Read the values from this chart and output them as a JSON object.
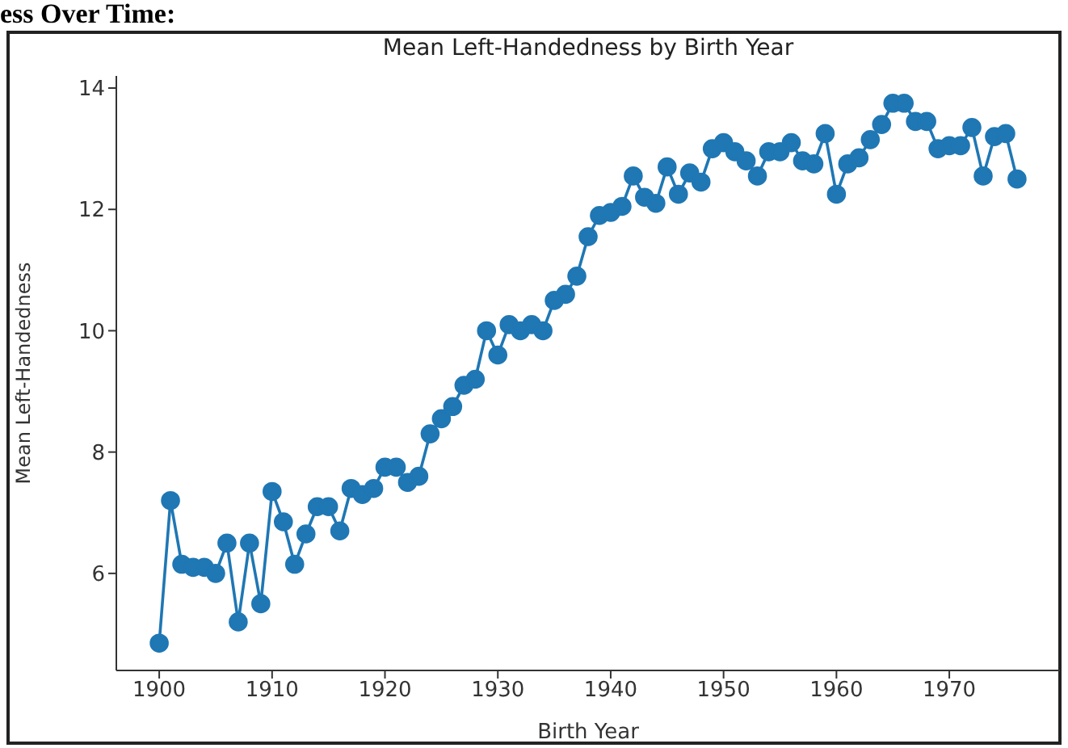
{
  "chart_data": {
    "type": "line",
    "title": "Mean Left-Handedness by Birth Year",
    "xlabel": "Birth Year",
    "ylabel": "Mean Left-Handedness",
    "annotations": [
      "ess Over Time:"
    ],
    "x": [
      1900,
      1901,
      1902,
      1903,
      1904,
      1905,
      1906,
      1907,
      1908,
      1909,
      1910,
      1911,
      1912,
      1913,
      1914,
      1915,
      1916,
      1917,
      1918,
      1919,
      1920,
      1921,
      1922,
      1923,
      1924,
      1925,
      1926,
      1927,
      1928,
      1929,
      1930,
      1931,
      1932,
      1933,
      1934,
      1935,
      1936,
      1937,
      1938,
      1939,
      1940,
      1941,
      1942,
      1943,
      1944,
      1945,
      1946,
      1947,
      1948,
      1949,
      1950,
      1951,
      1952,
      1953,
      1954,
      1955,
      1956,
      1957,
      1958,
      1959,
      1960,
      1961,
      1962,
      1963,
      1964,
      1965,
      1966,
      1967,
      1968,
      1969,
      1970,
      1971,
      1972,
      1973,
      1974,
      1975,
      1976
    ],
    "series": [
      {
        "color": "#1f77b4",
        "values": [
          4.85,
          7.2,
          6.15,
          6.1,
          6.1,
          6.0,
          6.5,
          5.2,
          6.5,
          5.5,
          7.35,
          6.85,
          6.15,
          6.65,
          7.1,
          7.1,
          6.7,
          7.4,
          7.3,
          7.4,
          7.75,
          7.75,
          7.5,
          7.6,
          8.3,
          8.55,
          8.75,
          9.1,
          9.2,
          10.0,
          9.6,
          10.1,
          10.0,
          10.1,
          10.0,
          10.5,
          10.6,
          10.9,
          11.55,
          11.9,
          11.95,
          12.05,
          12.55,
          12.2,
          12.1,
          12.7,
          12.25,
          12.6,
          12.45,
          13.0,
          13.1,
          12.95,
          12.8,
          12.55,
          12.95,
          12.95,
          13.1,
          12.8,
          12.75,
          13.25,
          12.25,
          12.75,
          12.85,
          13.15,
          13.4,
          13.75,
          13.75,
          13.45,
          13.45,
          13.0,
          13.05,
          13.05,
          13.35,
          12.55,
          13.2,
          13.25,
          12.5
        ]
      }
    ],
    "xlim": [
      1896.2,
      1979.8
    ],
    "xticks": [
      1900,
      1910,
      1920,
      1930,
      1940,
      1950,
      1960,
      1970
    ],
    "ylim": [
      4.4,
      14.2
    ],
    "yticks": [
      6,
      8,
      10,
      12,
      14
    ],
    "marker": "circle",
    "line_style": "solid",
    "grid": false,
    "legend": false
  }
}
